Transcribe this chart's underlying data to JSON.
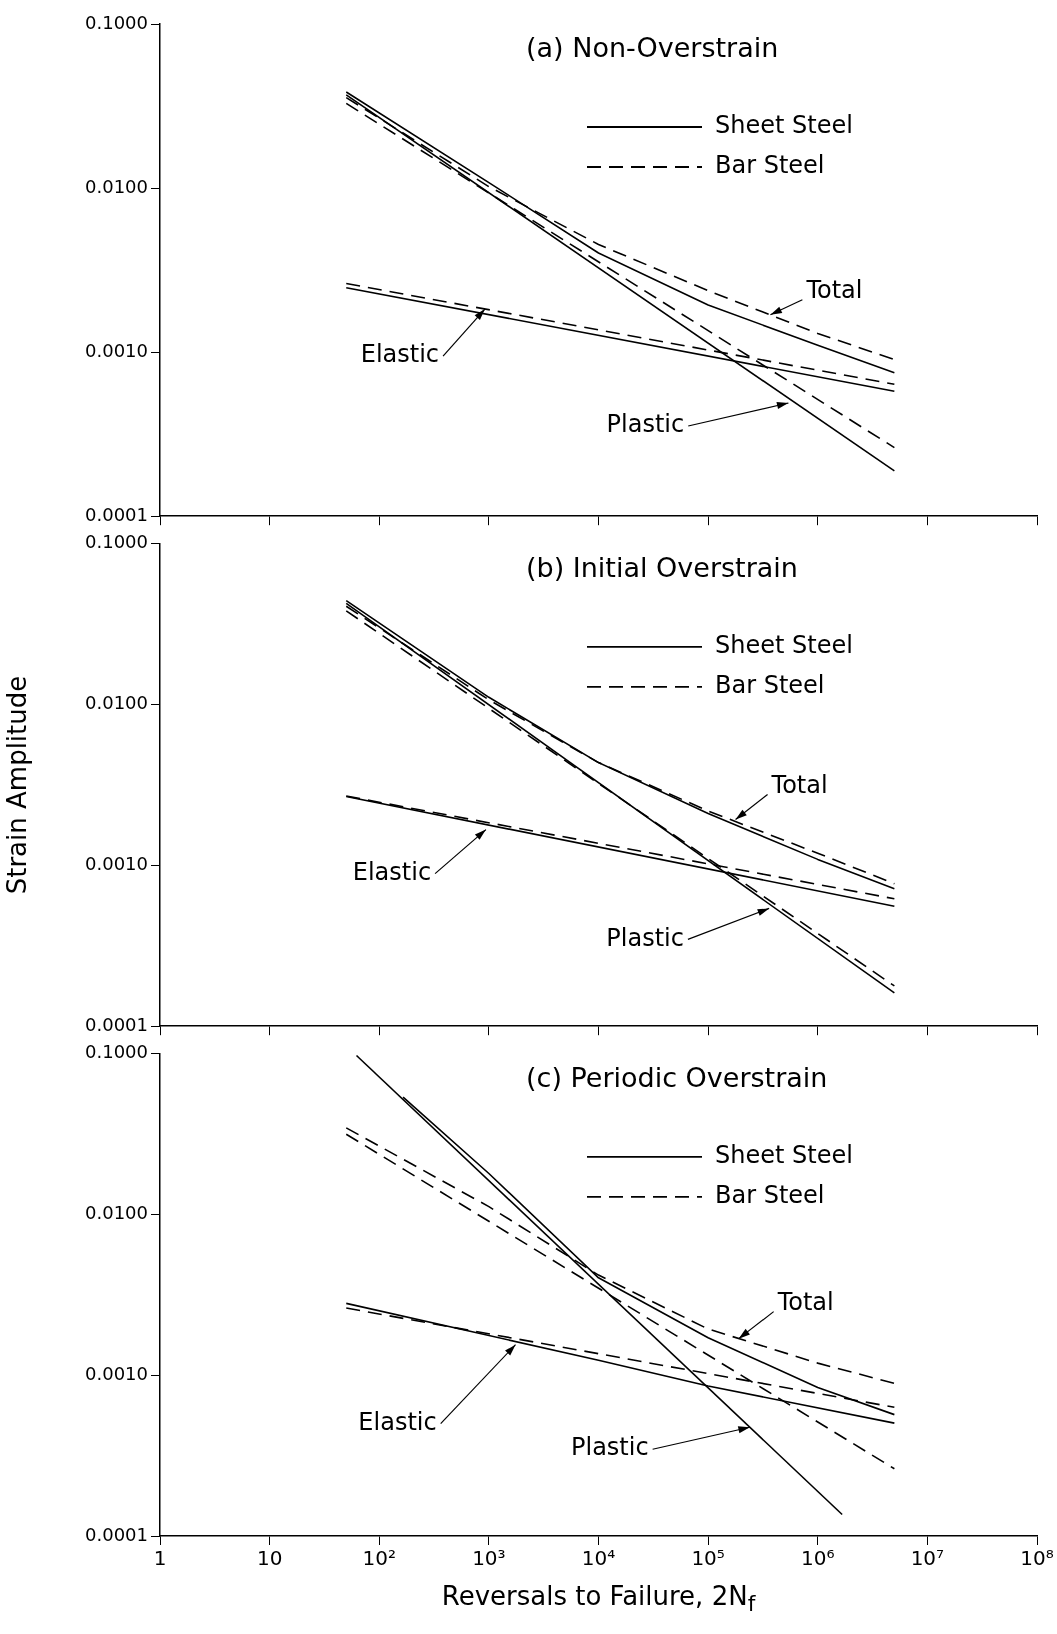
{
  "chart_data": [
    {
      "type": "line",
      "title": "(a) Non-Overstrain",
      "log": "xy",
      "legend": "top right",
      "marker": "none",
      "tick_labels": "y",
      "xlim": [
        1,
        100000000
      ],
      "ylim": [
        0.0001,
        0.1
      ],
      "xticks": [
        {
          "value": 1,
          "label": null
        },
        {
          "value": 10,
          "label": null
        },
        {
          "value": 100,
          "label": null
        },
        {
          "value": 1000,
          "label": null
        },
        {
          "value": 10000,
          "label": null
        },
        {
          "value": 100000,
          "label": null
        },
        {
          "value": 1000000,
          "label": null
        },
        {
          "value": 10000000,
          "label": null
        },
        {
          "value": 100000000,
          "label": null
        }
      ],
      "yticks": [
        {
          "value": 0.0001,
          "label": "0.0001"
        },
        {
          "value": 0.001,
          "label": "0.0010"
        },
        {
          "value": 0.01,
          "label": "0.0100"
        },
        {
          "value": 0.1,
          "label": "0.1000"
        }
      ],
      "series": [
        {
          "name": "Sheet Steel",
          "type": "line",
          "color": "#000000",
          "line_style": "solid",
          "x": [
            50,
            1000,
            10000,
            100000,
            1000000,
            5000000
          ],
          "values": [
            0.0385,
            0.0108,
            0.00402,
            0.00194,
            0.0011,
            0.000748
          ]
        },
        {
          "name": "Bar Steel",
          "type": "line",
          "color": "#000000",
          "line_style": "dashed",
          "x": [
            50,
            1000,
            10000,
            100000,
            1000000,
            5000000
          ],
          "values": [
            0.0356,
            0.0102,
            0.00453,
            0.00237,
            0.0013,
            0.0009
          ]
        },
        {
          "type": "line",
          "color": "#000000",
          "line_style": "solid",
          "x": [
            50,
            5000000
          ],
          "values": [
            0.00247,
            0.000577
          ]
        },
        {
          "type": "line",
          "color": "#000000",
          "line_style": "dashed",
          "x": [
            50,
            5000000
          ],
          "values": [
            0.00262,
            0.000637
          ]
        },
        {
          "type": "line",
          "color": "#000000",
          "line_style": "solid",
          "x": [
            50,
            5000000
          ],
          "values": [
            0.037,
            0.000189
          ]
        },
        {
          "type": "line",
          "color": "#000000",
          "line_style": "dashed",
          "x": [
            50,
            5000000
          ],
          "values": [
            0.0328,
            0.000262
          ]
        }
      ],
      "annotations": [
        {
          "text": "Total",
          "x": 370000,
          "y": 0.00169
        },
        {
          "text": "Elastic",
          "x": 920,
          "y": 0.00183
        },
        {
          "text": "Plastic",
          "x": 540000,
          "y": 0.00049
        }
      ]
    },
    {
      "type": "line",
      "title": "(b) Initial Overstrain",
      "ylabel": "Strain Amplitude",
      "log": "xy",
      "legend": "top right",
      "marker": "none",
      "tick_labels": "y",
      "xlim": [
        1,
        100000000
      ],
      "ylim": [
        0.0001,
        0.1
      ],
      "xticks": [
        {
          "value": 1,
          "label": null
        },
        {
          "value": 10,
          "label": null
        },
        {
          "value": 100,
          "label": null
        },
        {
          "value": 1000,
          "label": null
        },
        {
          "value": 10000,
          "label": null
        },
        {
          "value": 100000,
          "label": null
        },
        {
          "value": 1000000,
          "label": null
        },
        {
          "value": 10000000,
          "label": null
        },
        {
          "value": 100000000,
          "label": null
        }
      ],
      "yticks": [
        {
          "value": 0.0001,
          "label": "0.0001"
        },
        {
          "value": 0.001,
          "label": "0.0010"
        },
        {
          "value": 0.01,
          "label": "0.0100"
        },
        {
          "value": 0.1,
          "label": "0.1000"
        }
      ],
      "series": [
        {
          "name": "Sheet Steel",
          "type": "line",
          "color": "#000000",
          "line_style": "solid",
          "x": [
            50,
            1000,
            10000,
            100000,
            1000000,
            5000000
          ],
          "values": [
            0.0443,
            0.0111,
            0.00436,
            0.0021,
            0.00109,
            0.000716
          ]
        },
        {
          "name": "Bar Steel",
          "type": "line",
          "color": "#000000",
          "line_style": "dashed",
          "x": [
            50,
            1000,
            10000,
            100000,
            1000000,
            5000000
          ],
          "values": [
            0.0409,
            0.0107,
            0.00436,
            0.00218,
            0.00119,
            0.00077
          ]
        },
        {
          "type": "line",
          "color": "#000000",
          "line_style": "solid",
          "x": [
            50,
            5000000
          ],
          "values": [
            0.00268,
            0.000557
          ]
        },
        {
          "type": "line",
          "color": "#000000",
          "line_style": "dashed",
          "x": [
            50,
            5000000
          ],
          "values": [
            0.0027,
            0.00062
          ]
        },
        {
          "type": "line",
          "color": "#000000",
          "line_style": "solid",
          "x": [
            50,
            5000000
          ],
          "values": [
            0.0426,
            0.000161
          ]
        },
        {
          "type": "line",
          "color": "#000000",
          "line_style": "dashed",
          "x": [
            50,
            5000000
          ],
          "values": [
            0.0383,
            0.000178
          ]
        }
      ],
      "annotations": [
        {
          "text": "Total",
          "x": 178000,
          "y": 0.00193
        },
        {
          "text": "Elastic",
          "x": 940,
          "y": 0.00167
        },
        {
          "text": "Plastic",
          "x": 360000,
          "y": 0.00054
        }
      ]
    },
    {
      "type": "line",
      "title": "(c) Periodic Overstrain",
      "xlabel": "Reversals to Failure, 2N$_{f}$",
      "log": "xy",
      "legend": "top right",
      "marker": "none",
      "xlim": [
        1,
        100000000
      ],
      "ylim": [
        0.0001,
        0.1
      ],
      "xticks": [
        {
          "value": 1,
          "label": "1"
        },
        {
          "value": 10,
          "label": "10"
        },
        {
          "value": 100,
          "label": "10²"
        },
        {
          "value": 1000,
          "label": "10³"
        },
        {
          "value": 10000,
          "label": "10⁴"
        },
        {
          "value": 100000,
          "label": "10⁵"
        },
        {
          "value": 1000000,
          "label": "10⁶"
        },
        {
          "value": 10000000,
          "label": "10⁷"
        },
        {
          "value": 100000000,
          "label": "10⁸"
        }
      ],
      "yticks": [
        {
          "value": 0.0001,
          "label": "0.0001"
        },
        {
          "value": 0.001,
          "label": "0.0010"
        },
        {
          "value": 0.01,
          "label": "0.0100"
        },
        {
          "value": 0.1,
          "label": "0.1000"
        }
      ],
      "series": [
        {
          "name": "Sheet Steel",
          "type": "line",
          "color": "#000000",
          "line_style": "solid",
          "x": [
            165,
            1000,
            10000,
            100000,
            1000000,
            5000000
          ],
          "values": [
            0.0537,
            0.018,
            0.00404,
            0.00171,
            0.00084,
            0.000569
          ]
        },
        {
          "name": "Bar Steel",
          "type": "line",
          "color": "#000000",
          "line_style": "dashed",
          "x": [
            50,
            1000,
            10000,
            100000,
            1000000,
            5000000
          ],
          "values": [
            0.0346,
            0.0112,
            0.0042,
            0.00194,
            0.00119,
            0.00089
          ]
        },
        {
          "type": "line",
          "color": "#000000",
          "line_style": "solid",
          "x": [
            50,
            10000,
            100000,
            5000000
          ],
          "values": [
            0.0028,
            0.00124,
            0.000857,
            0.000504
          ]
        },
        {
          "type": "line",
          "color": "#000000",
          "line_style": "dashed",
          "x": [
            50,
            5000000
          ],
          "values": [
            0.00262,
            0.000632
          ]
        },
        {
          "type": "line",
          "color": "#000000",
          "line_style": "solid",
          "x": [
            62,
            1670000
          ],
          "values": [
            0.0976,
            0.000136
          ]
        },
        {
          "type": "line",
          "color": "#000000",
          "line_style": "dashed",
          "x": [
            50,
            5000000
          ],
          "values": [
            0.0316,
            0.000262
          ]
        }
      ],
      "annotations": [
        {
          "text": "Total",
          "x": 190000,
          "y": 0.00169
        },
        {
          "text": "Elastic",
          "x": 1750,
          "y": 0.00155
        },
        {
          "text": "Plastic",
          "x": 240000,
          "y": 0.000475
        }
      ]
    }
  ]
}
